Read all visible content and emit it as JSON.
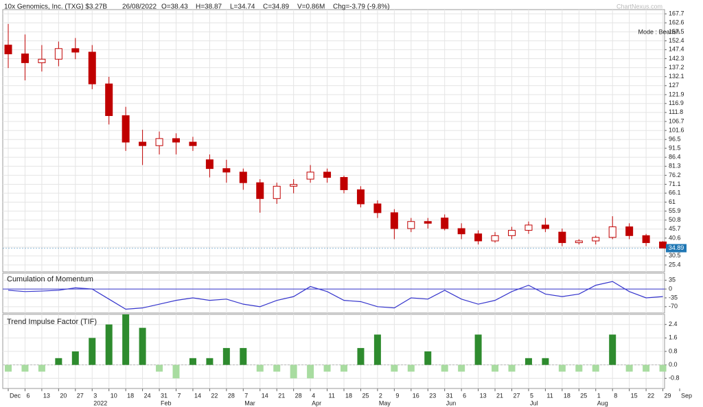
{
  "header": {
    "title": "10x Genomics, Inc. (TXG) $3.27B",
    "date": "26/08/2022",
    "open": "O=38.43",
    "high": "H=38.87",
    "low": "L=34.74",
    "close": "C=34.89",
    "volume": "V=0.86M",
    "change": "Chg=-3.79 (-9.8%)",
    "watermark": "ChartNexus.com"
  },
  "chart_data": [
    {
      "type": "candlestick",
      "categories": [
        "Dec",
        "6",
        "13",
        "20",
        "27",
        "3",
        "10",
        "18",
        "24",
        "31",
        "7",
        "14",
        "22",
        "28",
        "7",
        "14",
        "21",
        "28",
        "4",
        "11",
        "18",
        "25",
        "2",
        "9",
        "16",
        "23",
        "31",
        "6",
        "13",
        "21",
        "27",
        "5",
        "11",
        "18",
        "25",
        "1",
        "8",
        "15",
        "22",
        "29",
        "Sep"
      ],
      "month_labels": [
        null,
        null,
        null,
        null,
        null,
        "2022",
        null,
        null,
        null,
        "Feb",
        null,
        null,
        null,
        null,
        "Mar",
        null,
        null,
        null,
        "Apr",
        null,
        null,
        null,
        "May",
        null,
        null,
        null,
        "Jun",
        null,
        null,
        null,
        null,
        "Jul",
        null,
        null,
        null,
        "Aug",
        null,
        null,
        null,
        null,
        null
      ],
      "open": [
        150,
        145,
        140,
        142,
        148,
        146,
        128,
        110,
        95,
        93,
        97,
        95,
        85,
        80,
        78,
        72,
        63,
        70,
        74,
        78,
        75,
        68,
        60,
        55,
        46,
        50,
        52,
        46,
        43,
        39,
        42,
        45,
        48,
        44,
        38,
        39,
        41,
        47,
        42,
        38.43,
        null
      ],
      "high": [
        162,
        156,
        150,
        152,
        154,
        150,
        132,
        115,
        102,
        101,
        100,
        98,
        88,
        85,
        80,
        74,
        72,
        74,
        82,
        80,
        76,
        70,
        62,
        57,
        52,
        52,
        54,
        49,
        45,
        44,
        47,
        50,
        52,
        46,
        40,
        42,
        53,
        49,
        43,
        38.87,
        null
      ],
      "low": [
        137,
        130,
        135,
        138,
        142,
        125,
        105,
        90,
        82,
        88,
        88,
        90,
        75,
        72,
        68,
        55,
        60,
        66,
        72,
        72,
        66,
        58,
        52,
        40,
        44,
        46,
        45,
        40,
        37,
        38,
        40,
        43,
        44,
        36,
        37,
        37,
        40,
        40,
        36,
        34.74,
        null
      ],
      "close": [
        145,
        140,
        142,
        148,
        146,
        128,
        110,
        95,
        93,
        97,
        95,
        93,
        80,
        78,
        72,
        63,
        70,
        71,
        78,
        75,
        68,
        60,
        55,
        46,
        50,
        49,
        46,
        43,
        39,
        42,
        45,
        48,
        46,
        38,
        39,
        41,
        47,
        42,
        38,
        34.89,
        null
      ],
      "color": "#c00000",
      "ylim": [
        21.5,
        170.1
      ],
      "yticks": [
        167.7,
        162.6,
        157.5,
        152.4,
        147.4,
        142.3,
        137.2,
        132.1,
        127,
        121.9,
        116.9,
        111.8,
        106.7,
        101.6,
        96.5,
        91.5,
        86.4,
        81.3,
        76.2,
        71.1,
        66.1,
        61,
        55.9,
        50.8,
        45.7,
        40.6,
        35.5,
        30.5,
        25.4
      ],
      "grid": true,
      "annotation": "Mode : Bearish",
      "price_tag": 34.89,
      "price_tag_color": "#1f77b4"
    },
    {
      "type": "line",
      "title": "Cumulation of Momentum",
      "values": [
        -5,
        -10,
        -8,
        -5,
        5,
        0,
        -40,
        -80,
        -75,
        -60,
        -45,
        -35,
        -45,
        -40,
        -60,
        -70,
        -45,
        -30,
        10,
        -10,
        -45,
        -50,
        -70,
        -75,
        -35,
        -40,
        -5,
        -40,
        -60,
        -45,
        -10,
        15,
        -20,
        -30,
        -20,
        15,
        30,
        -10,
        -35,
        -30,
        null
      ],
      "color": "#3333cc",
      "baseline": 0,
      "ylim": [
        -95,
        63
      ],
      "yticks": [
        35,
        0,
        -35,
        -70
      ],
      "grid": true
    },
    {
      "type": "bar",
      "title": "Trend Impulse Factor (TIF)",
      "values": [
        -0.4,
        -0.4,
        -0.4,
        0.4,
        0.8,
        1.6,
        2.4,
        3.0,
        2.2,
        -0.4,
        -0.8,
        0.4,
        0.4,
        1.0,
        1.0,
        -0.4,
        -0.4,
        -0.8,
        -0.8,
        -0.4,
        -0.4,
        1.0,
        1.8,
        -0.4,
        -0.4,
        0.8,
        -0.4,
        -0.4,
        1.8,
        -0.4,
        -0.4,
        0.4,
        0.4,
        -0.4,
        -0.4,
        -0.4,
        1.8,
        -0.4,
        -0.4,
        -0.4,
        null
      ],
      "color": "#2e8b2e",
      "negative_color": "#a8dca0",
      "ylim": [
        -1.4,
        3.0
      ],
      "yticks": [
        2.4,
        1.6,
        0.8,
        {
          "value": 0,
          "label": "0.0"
        },
        -0.8
      ],
      "grid": true
    }
  ]
}
